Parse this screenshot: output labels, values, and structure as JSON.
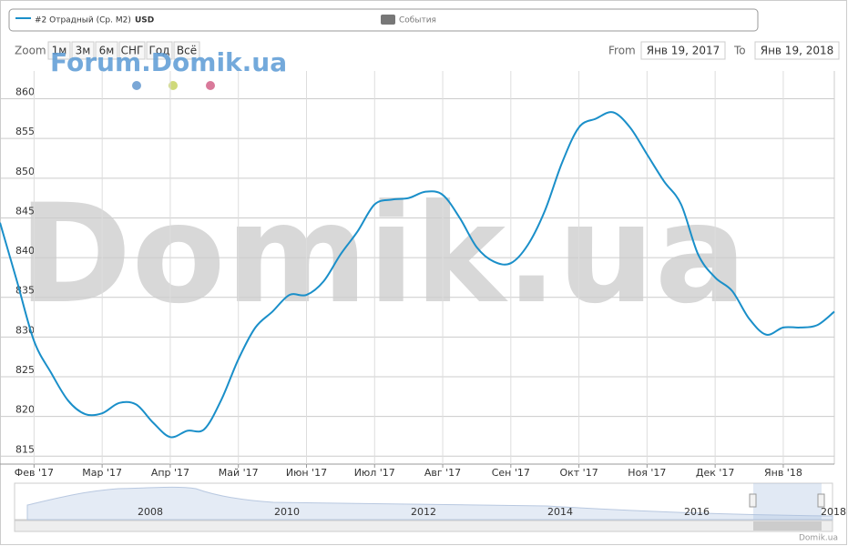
{
  "ui": {
    "legend_series": "#2 Отрадный (Ср. М2)",
    "legend_unit": "USD",
    "legend_events": "События",
    "zoom_label": "Zoom",
    "zoom_buttons": [
      "1м",
      "3м",
      "6м",
      "СНГ",
      "Год",
      "Всё"
    ],
    "from_label": "From",
    "from_value": "Янв 19, 2017",
    "to_label": "To",
    "to_value": "Янв 19, 2018",
    "watermark_small": "Forum.Domik.ua",
    "watermark_big": "Domik.ua",
    "credit": "Domik.ua",
    "navigator_years": [
      "2008",
      "2010",
      "2012",
      "2014",
      "2016",
      "2018"
    ]
  },
  "chart_data": {
    "type": "line",
    "color": "#1a8fc9",
    "grid": true,
    "categories": [
      null,
      null,
      "Фев '17",
      null,
      null,
      null,
      "Мар '17",
      null,
      null,
      null,
      "Апр '17",
      null,
      null,
      null,
      "Май '17",
      null,
      null,
      null,
      "Июн '17",
      null,
      null,
      null,
      "Июл '17",
      null,
      null,
      null,
      "Авг '17",
      null,
      null,
      null,
      "Сен '17",
      null,
      null,
      null,
      "Окт '17",
      null,
      null,
      null,
      "Ноя '17",
      null,
      null,
      null,
      "Дек '17",
      null,
      null,
      null,
      "Янв '18",
      null,
      null,
      null
    ],
    "values": [
      844.4,
      837,
      829.5,
      825.5,
      822,
      820.3,
      820.4,
      821.7,
      821.5,
      819.2,
      817.4,
      818.2,
      818.4,
      822.1,
      827.2,
      831.2,
      833.2,
      835.3,
      835.3,
      837,
      840.4,
      843.3,
      846.7,
      847.3,
      847.5,
      848.3,
      847.9,
      845,
      841.3,
      839.5,
      839.3,
      841.6,
      845.9,
      851.9,
      856.4,
      857.5,
      858.3,
      856.4,
      853,
      849.6,
      846.7,
      840.4,
      837.5,
      835.8,
      832.3,
      830.3,
      831.2,
      831.2,
      831.5,
      833.2
    ],
    "ylim": [
      814,
      863.5
    ],
    "yticks": [
      815,
      820,
      825,
      830,
      835,
      840,
      845,
      850,
      855,
      860
    ]
  }
}
